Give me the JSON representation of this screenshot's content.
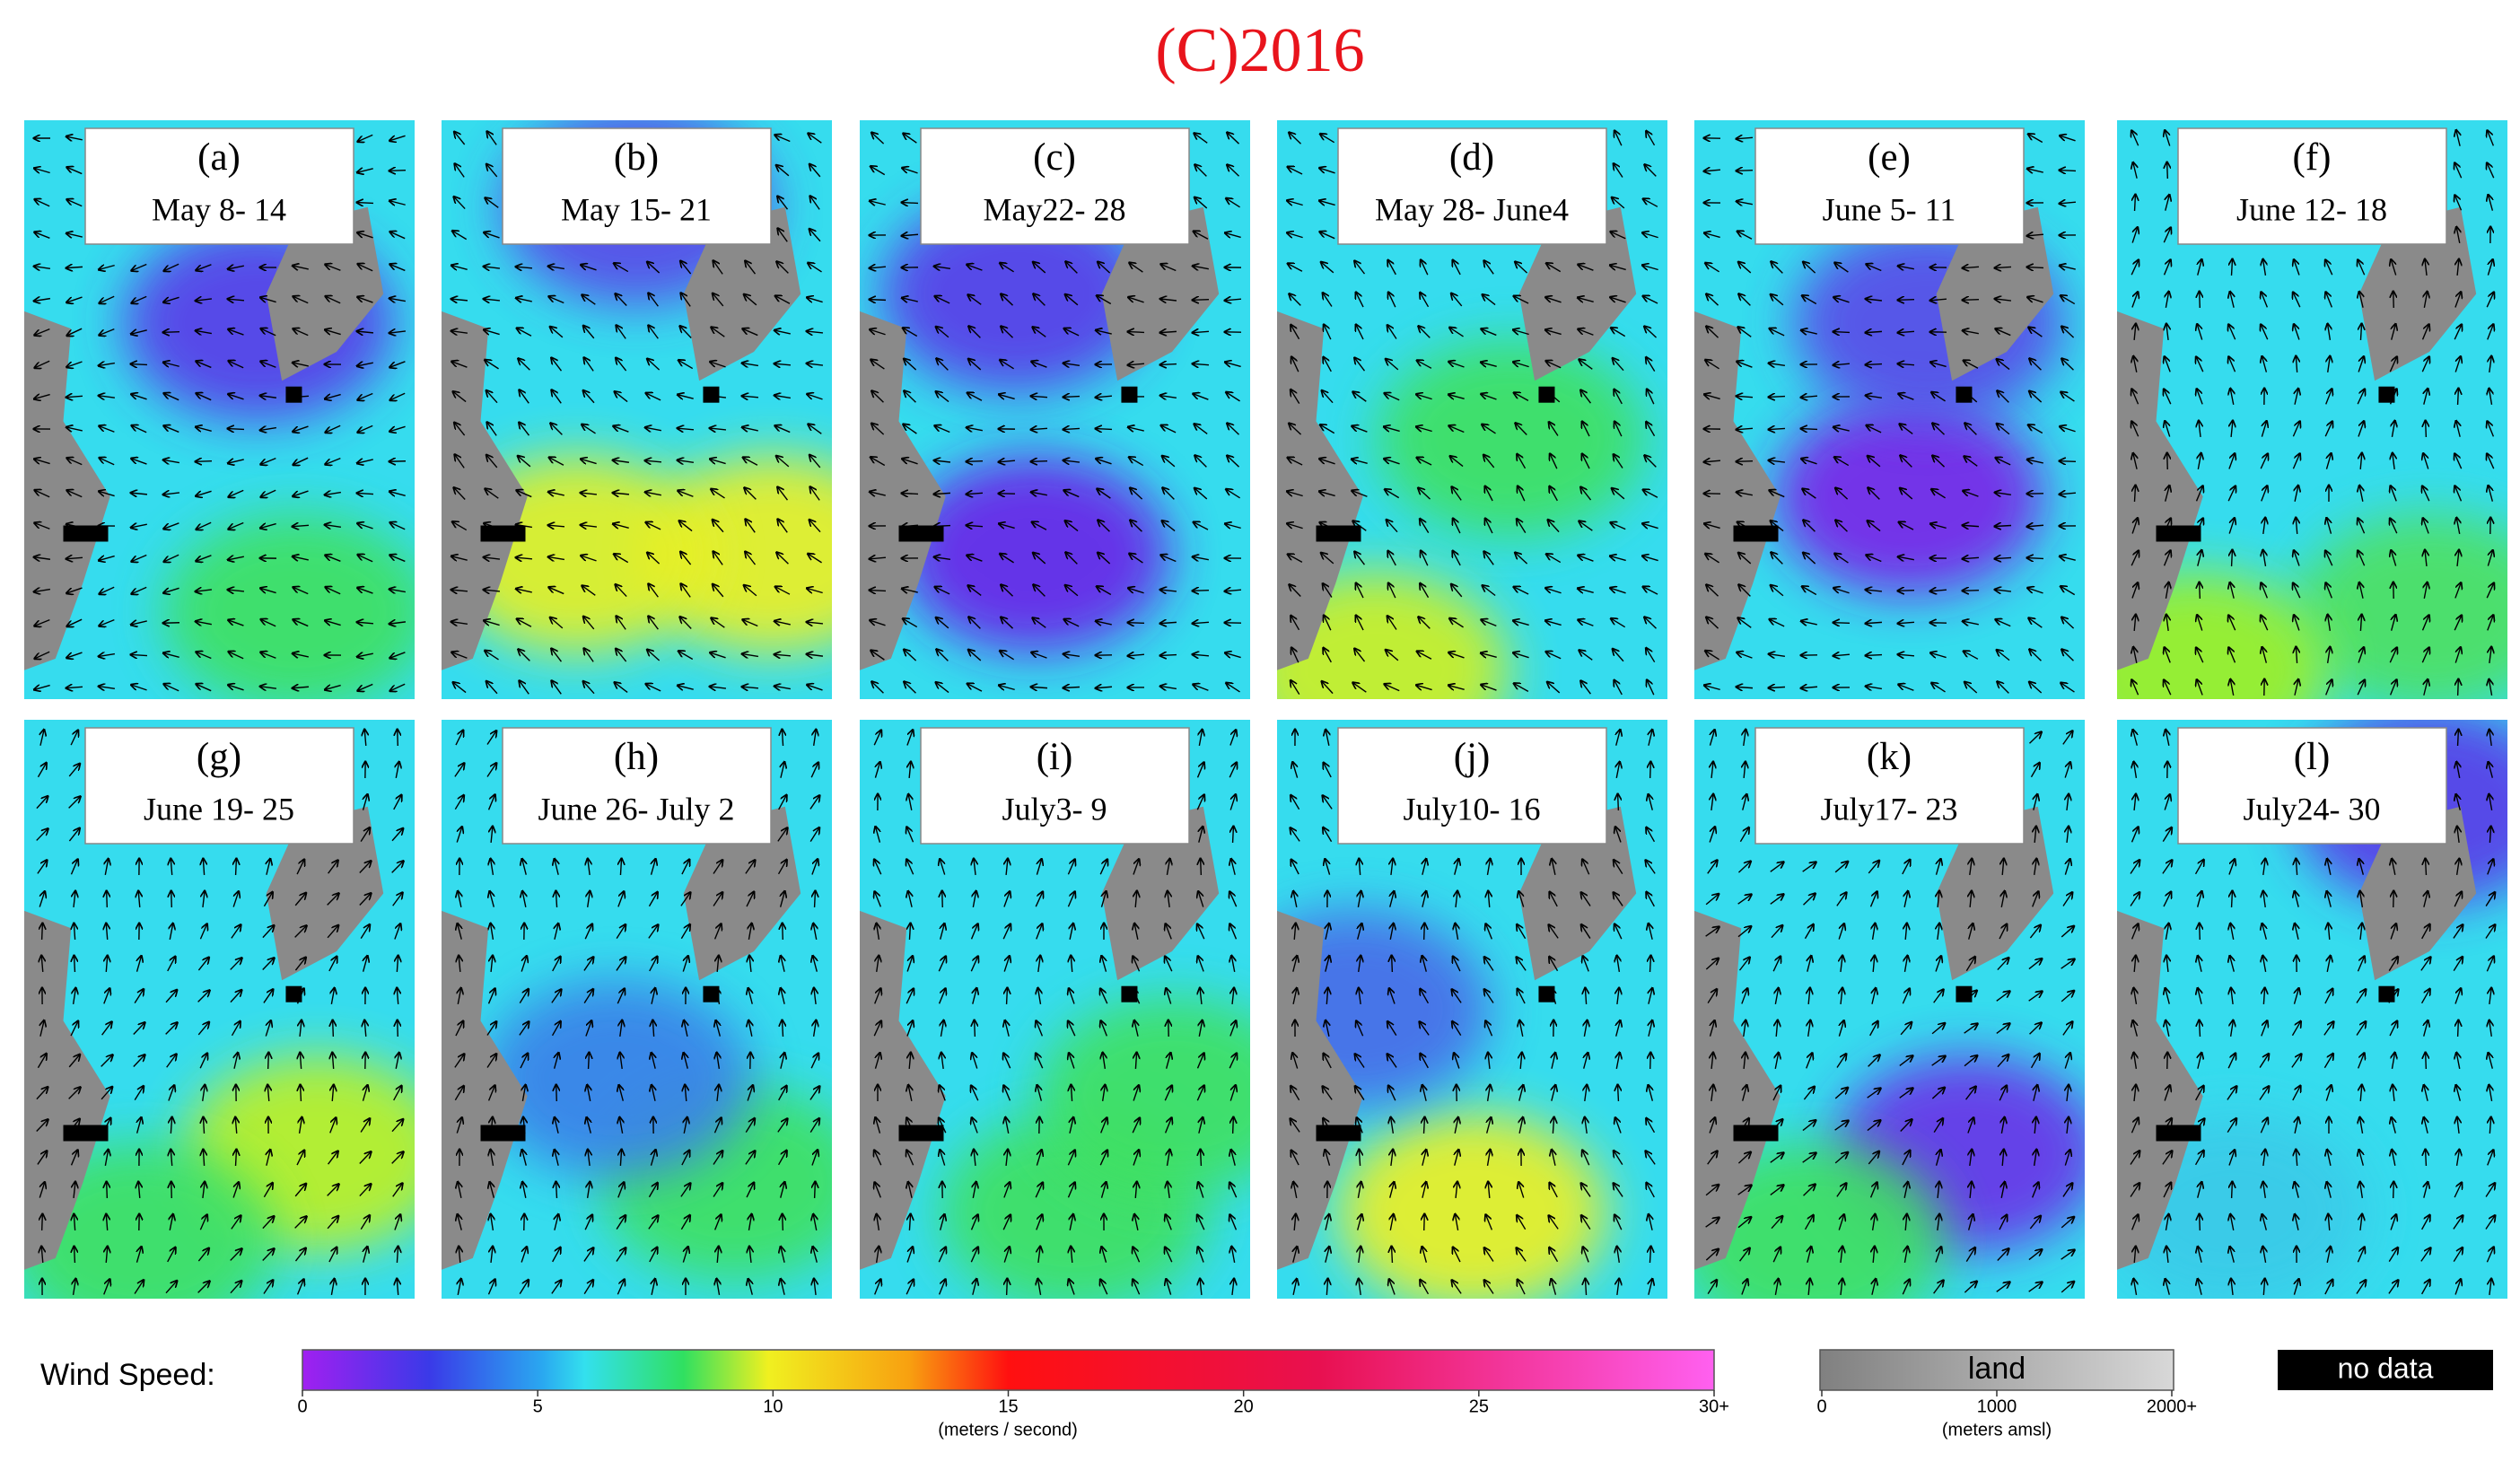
{
  "title": "(C)2016",
  "panels": [
    {
      "letter": "(a)",
      "dates": "May 8- 14"
    },
    {
      "letter": "(b)",
      "dates": "May 15- 21"
    },
    {
      "letter": "(c)",
      "dates": "May22- 28"
    },
    {
      "letter": "(d)",
      "dates": "May 28- June4"
    },
    {
      "letter": "(e)",
      "dates": "June 5- 11"
    },
    {
      "letter": "(f)",
      "dates": "June 12- 18"
    },
    {
      "letter": "(g)",
      "dates": "June 19- 25"
    },
    {
      "letter": "(h)",
      "dates": "June 26- July 2"
    },
    {
      "letter": "(i)",
      "dates": "July3- 9"
    },
    {
      "letter": "(j)",
      "dates": "July10- 16"
    },
    {
      "letter": "(k)",
      "dates": "July17- 23"
    },
    {
      "letter": "(l)",
      "dates": "July24- 30"
    }
  ],
  "wind_legend": {
    "label": "Wind Speed:",
    "lim": [
      0,
      30
    ],
    "ticks": [
      0,
      5,
      10,
      15,
      20,
      25,
      {
        "value": 30,
        "label": "30+"
      }
    ],
    "unit": "(meters / second)"
  },
  "land_legend": {
    "label": "land",
    "lim": [
      0,
      2000
    ],
    "ticks": [
      0,
      1000,
      {
        "value": 2000,
        "label": "2000+"
      }
    ],
    "unit": "(meters amsl)"
  },
  "no_data": "no data"
}
